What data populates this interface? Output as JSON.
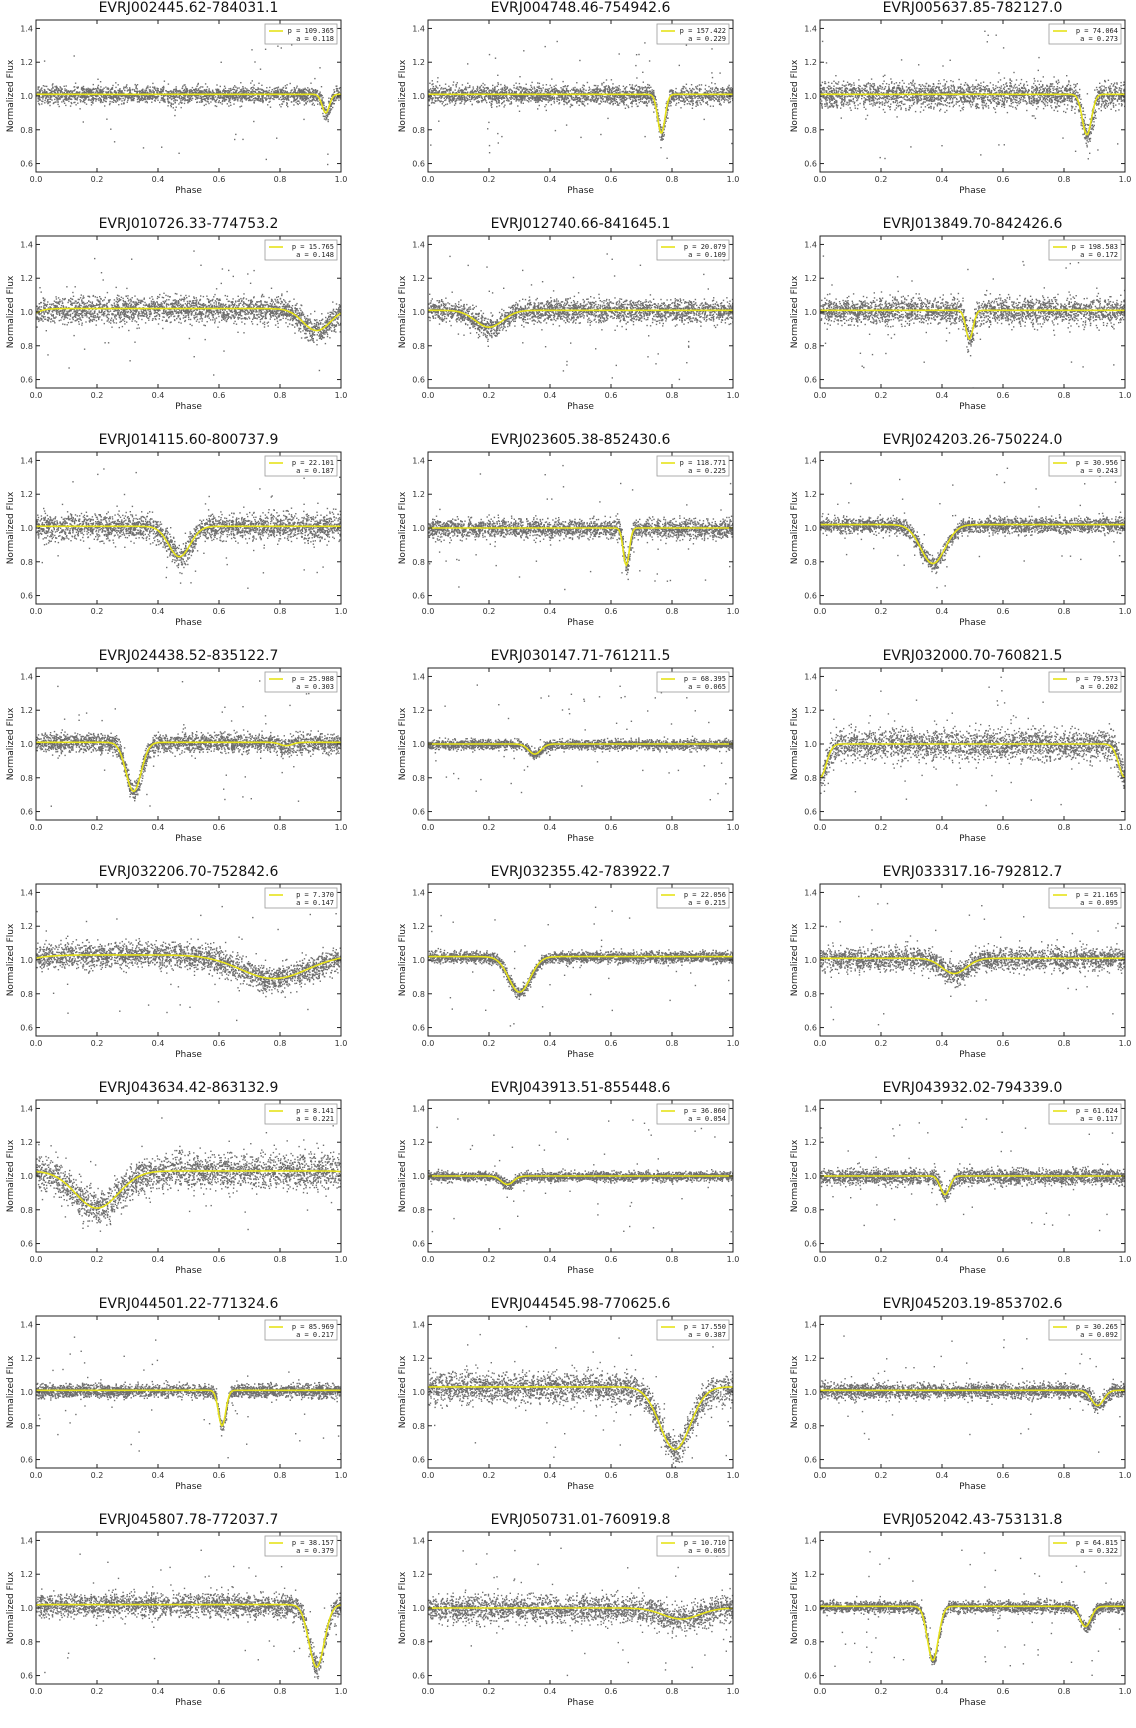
{
  "figure": {
    "xlabel": "Phase",
    "ylabel": "Normalized Flux",
    "xticks": [
      "0.0",
      "0.2",
      "0.4",
      "0.6",
      "0.8",
      "1.0"
    ],
    "yticks": [
      "0.6",
      "0.8",
      "1.0",
      "1.2",
      "1.4"
    ],
    "point_color": "#6e6e6e",
    "fit_color": "#e6e21a"
  },
  "chart_data": [
    {
      "type": "scatter",
      "title": "EVRJ002445.62-784031.1",
      "period_label": "p = 109.365",
      "amp_label": "a = 0.118",
      "xlabel": "Phase",
      "ylabel": "Normalized Flux",
      "xlim": [
        0,
        1
      ],
      "ylim": [
        0.55,
        1.45
      ],
      "fit": {
        "baseline": 1.01,
        "dips": [
          {
            "center": 0.95,
            "depth": 0.11,
            "width": 0.012
          }
        ]
      },
      "scatter": {
        "sigma": 0.045
      }
    },
    {
      "type": "scatter",
      "title": "EVRJ004748.46-754942.6",
      "period_label": "p = 157.422",
      "amp_label": "a = 0.229",
      "xlabel": "Phase",
      "ylabel": "Normalized Flux",
      "xlim": [
        0,
        1
      ],
      "ylim": [
        0.55,
        1.45
      ],
      "fit": {
        "baseline": 1.01,
        "dips": [
          {
            "center": 0.765,
            "depth": 0.23,
            "width": 0.012
          }
        ]
      },
      "scatter": {
        "sigma": 0.05
      }
    },
    {
      "type": "scatter",
      "title": "EVRJ005637.85-782127.0",
      "period_label": "p = 74.064",
      "amp_label": "a = 0.273",
      "xlabel": "Phase",
      "ylabel": "Normalized Flux",
      "xlim": [
        0,
        1
      ],
      "ylim": [
        0.55,
        1.45
      ],
      "fit": {
        "baseline": 1.01,
        "dips": [
          {
            "center": 0.875,
            "depth": 0.24,
            "width": 0.015
          }
        ]
      },
      "scatter": {
        "sigma": 0.07
      }
    },
    {
      "type": "scatter",
      "title": "EVRJ010726.33-774753.2",
      "period_label": "p = 15.765",
      "amp_label": "a = 0.148",
      "xlabel": "Phase",
      "ylabel": "Normalized Flux",
      "xlim": [
        0,
        1
      ],
      "ylim": [
        0.55,
        1.45
      ],
      "fit": {
        "baseline": 1.02,
        "dips": [
          {
            "center": 0.92,
            "depth": 0.13,
            "width": 0.045
          }
        ]
      },
      "scatter": {
        "sigma": 0.07
      }
    },
    {
      "type": "scatter",
      "title": "EVRJ012740.66-841645.1",
      "period_label": "p = 20.079",
      "amp_label": "a = 0.109",
      "xlabel": "Phase",
      "ylabel": "Normalized Flux",
      "xlim": [
        0,
        1
      ],
      "ylim": [
        0.55,
        1.45
      ],
      "fit": {
        "baseline": 1.01,
        "dips": [
          {
            "center": 0.2,
            "depth": 0.1,
            "width": 0.045
          }
        ]
      },
      "scatter": {
        "sigma": 0.06
      }
    },
    {
      "type": "scatter",
      "title": "EVRJ013849.70-842426.6",
      "period_label": "p = 198.583",
      "amp_label": "a = 0.172",
      "xlabel": "Phase",
      "ylabel": "Normalized Flux",
      "xlim": [
        0,
        1
      ],
      "ylim": [
        0.55,
        1.45
      ],
      "fit": {
        "baseline": 1.01,
        "dips": [
          {
            "center": 0.49,
            "depth": 0.17,
            "width": 0.012
          }
        ]
      },
      "scatter": {
        "sigma": 0.07
      }
    },
    {
      "type": "scatter",
      "title": "EVRJ014115.60-800737.9",
      "period_label": "p = 22.101",
      "amp_label": "a = 0.187",
      "xlabel": "Phase",
      "ylabel": "Normalized Flux",
      "xlim": [
        0,
        1
      ],
      "ylim": [
        0.55,
        1.45
      ],
      "fit": {
        "baseline": 1.01,
        "dips": [
          {
            "center": 0.47,
            "depth": 0.18,
            "width": 0.035
          }
        ]
      },
      "scatter": {
        "sigma": 0.07
      }
    },
    {
      "type": "scatter",
      "title": "EVRJ023605.38-852430.6",
      "period_label": "p = 118.771",
      "amp_label": "a = 0.225",
      "xlabel": "Phase",
      "ylabel": "Normalized Flux",
      "xlim": [
        0,
        1
      ],
      "ylim": [
        0.55,
        1.45
      ],
      "fit": {
        "baseline": 1.0,
        "dips": [
          {
            "center": 0.65,
            "depth": 0.22,
            "width": 0.01
          }
        ]
      },
      "scatter": {
        "sigma": 0.05
      }
    },
    {
      "type": "scatter",
      "title": "EVRJ024203.26-750224.0",
      "period_label": "p = 30.956",
      "amp_label": "a = 0.243",
      "xlabel": "Phase",
      "ylabel": "Normalized Flux",
      "xlim": [
        0,
        1
      ],
      "ylim": [
        0.55,
        1.45
      ],
      "fit": {
        "baseline": 1.02,
        "dips": [
          {
            "center": 0.37,
            "depth": 0.23,
            "width": 0.04
          }
        ]
      },
      "scatter": {
        "sigma": 0.04
      }
    },
    {
      "type": "scatter",
      "title": "EVRJ024438.52-835122.7",
      "period_label": "p = 25.988",
      "amp_label": "a = 0.303",
      "xlabel": "Phase",
      "ylabel": "Normalized Flux",
      "xlim": [
        0,
        1
      ],
      "ylim": [
        0.55,
        1.45
      ],
      "fit": {
        "baseline": 1.01,
        "dips": [
          {
            "center": 0.32,
            "depth": 0.29,
            "width": 0.025
          },
          {
            "center": 0.82,
            "depth": 0.02,
            "width": 0.02
          }
        ]
      },
      "scatter": {
        "sigma": 0.05
      }
    },
    {
      "type": "scatter",
      "title": "EVRJ030147.71-761211.5",
      "period_label": "p = 68.395",
      "amp_label": "a = 0.065",
      "xlabel": "Phase",
      "ylabel": "Normalized Flux",
      "xlim": [
        0,
        1
      ],
      "ylim": [
        0.55,
        1.45
      ],
      "fit": {
        "baseline": 1.0,
        "dips": [
          {
            "center": 0.35,
            "depth": 0.06,
            "width": 0.02
          }
        ]
      },
      "scatter": {
        "sigma": 0.025
      }
    },
    {
      "type": "scatter",
      "title": "EVRJ032000.70-760821.5",
      "period_label": "p = 79.573",
      "amp_label": "a = 0.202",
      "xlabel": "Phase",
      "ylabel": "Normalized Flux",
      "xlim": [
        0,
        1
      ],
      "ylim": [
        0.55,
        1.45
      ],
      "fit": {
        "baseline": 1.0,
        "dips": [
          {
            "center": 0.0,
            "depth": 0.2,
            "width": 0.02
          }
        ]
      },
      "scatter": {
        "sigma": 0.08
      }
    },
    {
      "type": "scatter",
      "title": "EVRJ032206.70-752842.6",
      "period_label": "p = 7.370",
      "amp_label": "a = 0.147",
      "xlabel": "Phase",
      "ylabel": "Normalized Flux",
      "xlim": [
        0,
        1
      ],
      "ylim": [
        0.55,
        1.45
      ],
      "fit": {
        "baseline": 1.03,
        "dips": [
          {
            "center": 0.78,
            "depth": 0.14,
            "width": 0.11
          }
        ]
      },
      "scatter": {
        "sigma": 0.07
      }
    },
    {
      "type": "scatter",
      "title": "EVRJ032355.42-783922.7",
      "period_label": "p = 22.056",
      "amp_label": "a = 0.215",
      "xlabel": "Phase",
      "ylabel": "Normalized Flux",
      "xlim": [
        0,
        1
      ],
      "ylim": [
        0.55,
        1.45
      ],
      "fit": {
        "baseline": 1.02,
        "dips": [
          {
            "center": 0.3,
            "depth": 0.21,
            "width": 0.035
          }
        ]
      },
      "scatter": {
        "sigma": 0.03
      }
    },
    {
      "type": "scatter",
      "title": "EVRJ033317.16-792812.7",
      "period_label": "p = 21.165",
      "amp_label": "a = 0.095",
      "xlabel": "Phase",
      "ylabel": "Normalized Flux",
      "xlim": [
        0,
        1
      ],
      "ylim": [
        0.55,
        1.45
      ],
      "fit": {
        "baseline": 1.01,
        "dips": [
          {
            "center": 0.44,
            "depth": 0.09,
            "width": 0.04
          }
        ]
      },
      "scatter": {
        "sigma": 0.06
      }
    },
    {
      "type": "scatter",
      "title": "EVRJ043634.42-863132.9",
      "period_label": "p = 8.141",
      "amp_label": "a = 0.221",
      "xlabel": "Phase",
      "ylabel": "Normalized Flux",
      "xlim": [
        0,
        1
      ],
      "ylim": [
        0.55,
        1.45
      ],
      "fit": {
        "baseline": 1.03,
        "dips": [
          {
            "center": 0.2,
            "depth": 0.22,
            "width": 0.07
          }
        ]
      },
      "scatter": {
        "sigma": 0.09
      }
    },
    {
      "type": "scatter",
      "title": "EVRJ043913.51-855448.6",
      "period_label": "p = 36.860",
      "amp_label": "a = 0.054",
      "xlabel": "Phase",
      "ylabel": "Normalized Flux",
      "xlim": [
        0,
        1
      ],
      "ylim": [
        0.55,
        1.45
      ],
      "fit": {
        "baseline": 1.0,
        "dips": [
          {
            "center": 0.26,
            "depth": 0.05,
            "width": 0.02
          }
        ]
      },
      "scatter": {
        "sigma": 0.025
      }
    },
    {
      "type": "scatter",
      "title": "EVRJ043932.02-794339.0",
      "period_label": "p = 61.624",
      "amp_label": "a = 0.117",
      "xlabel": "Phase",
      "ylabel": "Normalized Flux",
      "xlim": [
        0,
        1
      ],
      "ylim": [
        0.55,
        1.45
      ],
      "fit": {
        "baseline": 1.0,
        "dips": [
          {
            "center": 0.41,
            "depth": 0.11,
            "width": 0.015
          }
        ]
      },
      "scatter": {
        "sigma": 0.04
      }
    },
    {
      "type": "scatter",
      "title": "EVRJ044501.22-771324.6",
      "period_label": "p = 85.969",
      "amp_label": "a = 0.217",
      "xlabel": "Phase",
      "ylabel": "Normalized Flux",
      "xlim": [
        0,
        1
      ],
      "ylim": [
        0.55,
        1.45
      ],
      "fit": {
        "baseline": 1.01,
        "dips": [
          {
            "center": 0.61,
            "depth": 0.21,
            "width": 0.012
          }
        ]
      },
      "scatter": {
        "sigma": 0.035
      }
    },
    {
      "type": "scatter",
      "title": "EVRJ044545.98-770625.6",
      "period_label": "p = 17.550",
      "amp_label": "a = 0.387",
      "xlabel": "Phase",
      "ylabel": "Normalized Flux",
      "xlim": [
        0,
        1
      ],
      "ylim": [
        0.55,
        1.45
      ],
      "fit": {
        "baseline": 1.03,
        "dips": [
          {
            "center": 0.81,
            "depth": 0.37,
            "width": 0.05
          }
        ]
      },
      "scatter": {
        "sigma": 0.08
      }
    },
    {
      "type": "scatter",
      "title": "EVRJ045203.19-853702.6",
      "period_label": "p = 30.265",
      "amp_label": "a = 0.092",
      "xlabel": "Phase",
      "ylabel": "Normalized Flux",
      "xlim": [
        0,
        1
      ],
      "ylim": [
        0.55,
        1.45
      ],
      "fit": {
        "baseline": 1.01,
        "dips": [
          {
            "center": 0.91,
            "depth": 0.09,
            "width": 0.02
          }
        ]
      },
      "scatter": {
        "sigma": 0.04
      }
    },
    {
      "type": "scatter",
      "title": "EVRJ045807.78-772037.7",
      "period_label": "p = 38.157",
      "amp_label": "a = 0.379",
      "xlabel": "Phase",
      "ylabel": "Normalized Flux",
      "xlim": [
        0,
        1
      ],
      "ylim": [
        0.55,
        1.45
      ],
      "fit": {
        "baseline": 1.02,
        "dips": [
          {
            "center": 0.92,
            "depth": 0.37,
            "width": 0.025
          }
        ]
      },
      "scatter": {
        "sigma": 0.06
      }
    },
    {
      "type": "scatter",
      "title": "EVRJ050731.01-760919.8",
      "period_label": "p = 10.710",
      "amp_label": "a = 0.065",
      "xlabel": "Phase",
      "ylabel": "Normalized Flux",
      "xlim": [
        0,
        1
      ],
      "ylim": [
        0.55,
        1.45
      ],
      "fit": {
        "baseline": 1.0,
        "dips": [
          {
            "center": 0.83,
            "depth": 0.065,
            "width": 0.06
          }
        ]
      },
      "scatter": {
        "sigma": 0.07
      }
    },
    {
      "type": "scatter",
      "title": "EVRJ052042.43-753131.8",
      "period_label": "p = 64.815",
      "amp_label": "a = 0.322",
      "xlabel": "Phase",
      "ylabel": "Normalized Flux",
      "xlim": [
        0,
        1
      ],
      "ylim": [
        0.55,
        1.45
      ],
      "fit": {
        "baseline": 1.01,
        "dips": [
          {
            "center": 0.37,
            "depth": 0.32,
            "width": 0.018
          },
          {
            "center": 0.87,
            "depth": 0.12,
            "width": 0.018
          }
        ]
      },
      "scatter": {
        "sigma": 0.03
      }
    }
  ]
}
